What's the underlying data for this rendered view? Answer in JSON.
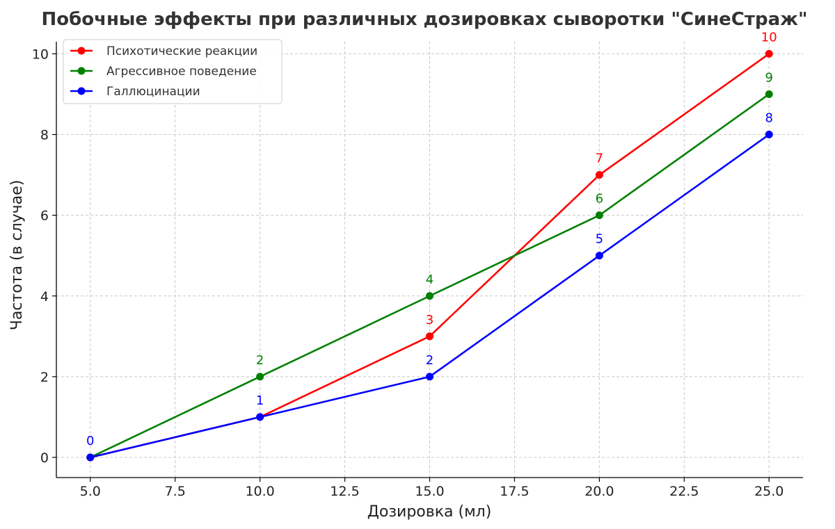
{
  "chart_data": {
    "type": "line",
    "title": "Побочные эффекты при различных дозировках сыворотки \"СинеСтраж\"",
    "xlabel": "Дозировка (мл)",
    "ylabel": "Частота (в случае)",
    "x": [
      5,
      10,
      15,
      20,
      25
    ],
    "xlim": [
      4,
      26
    ],
    "ylim": [
      -0.5,
      10.3
    ],
    "xticks": [
      "5.0",
      "7.5",
      "10.0",
      "12.5",
      "15.0",
      "17.5",
      "20.0",
      "22.5",
      "25.0"
    ],
    "yticks": [
      "0",
      "2",
      "4",
      "6",
      "8",
      "10"
    ],
    "grid": true,
    "legend_position": "top-left",
    "series": [
      {
        "name": "Психотические реакции",
        "color": "#ff0000",
        "values": [
          0,
          1,
          3,
          7,
          10
        ],
        "labels": [
          "",
          "",
          "3",
          "7",
          "10"
        ]
      },
      {
        "name": "Агрессивное поведение",
        "color": "#008000",
        "values": [
          0,
          2,
          4,
          6,
          9
        ],
        "labels": [
          "",
          "2",
          "4",
          "6",
          "9"
        ]
      },
      {
        "name": "Галлюцинации",
        "color": "#0000ff",
        "values": [
          0,
          1,
          2,
          5,
          8
        ],
        "labels": [
          "0",
          "1",
          "2",
          "5",
          "8"
        ]
      }
    ]
  }
}
